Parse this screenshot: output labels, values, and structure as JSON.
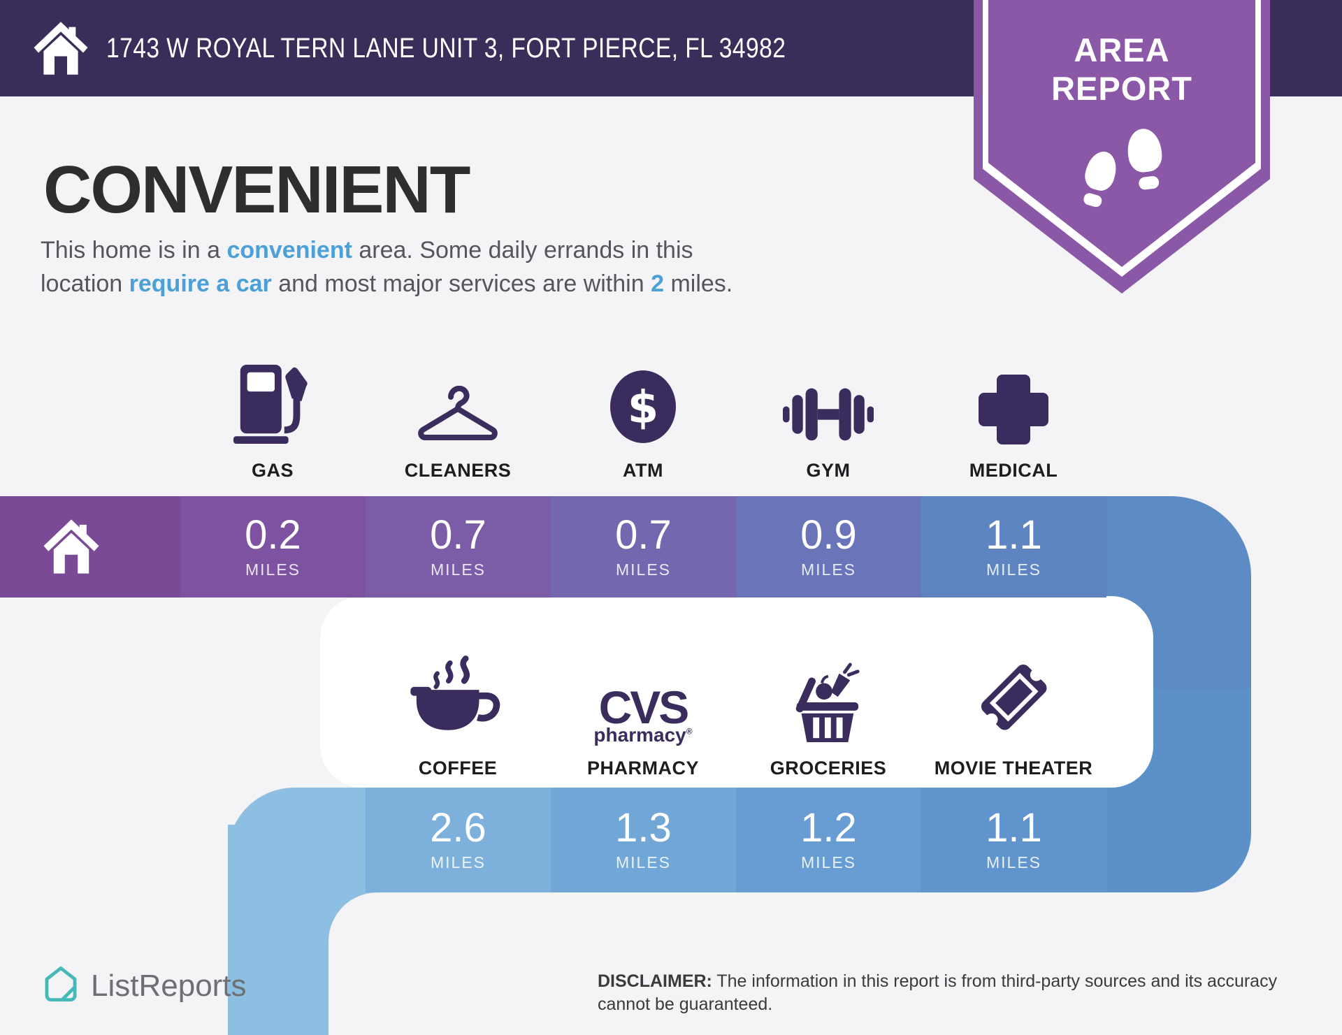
{
  "header": {
    "address": "1743 W ROYAL TERN LANE UNIT 3, FORT PIERCE, FL 34982"
  },
  "badge": {
    "line1": "AREA",
    "line2": "REPORT"
  },
  "intro": {
    "title": "CONVENIENT",
    "parts": [
      {
        "text": "This home is in a ",
        "highlight": false
      },
      {
        "text": "convenient",
        "highlight": true
      },
      {
        "text": " area. Some daily errands in this location ",
        "highlight": false
      },
      {
        "text": "require a car",
        "highlight": true
      },
      {
        "text": " and most major services are within ",
        "highlight": false
      },
      {
        "text": "2",
        "highlight": true
      },
      {
        "text": " miles.",
        "highlight": false
      }
    ]
  },
  "row1": {
    "home_icon": "home",
    "items": [
      {
        "icon": "gas",
        "label": "GAS",
        "distance": "0.2",
        "unit": "MILES"
      },
      {
        "icon": "cleaners",
        "label": "CLEANERS",
        "distance": "0.7",
        "unit": "MILES"
      },
      {
        "icon": "atm",
        "label": "ATM",
        "distance": "0.7",
        "unit": "MILES"
      },
      {
        "icon": "gym",
        "label": "GYM",
        "distance": "0.9",
        "unit": "MILES"
      },
      {
        "icon": "medical",
        "label": "MEDICAL",
        "distance": "1.1",
        "unit": "MILES"
      }
    ]
  },
  "row2": {
    "items": [
      {
        "icon": "coffee",
        "label": "COFFEE",
        "distance": "2.6",
        "unit": "MILES"
      },
      {
        "icon": "cvs",
        "label": "PHARMACY",
        "distance": "1.3",
        "unit": "MILES",
        "logo_line1": "CVS",
        "logo_line2": "pharmacy",
        "logo_reg": "®"
      },
      {
        "icon": "groceries",
        "label": "GROCERIES",
        "distance": "1.2",
        "unit": "MILES"
      },
      {
        "icon": "ticket",
        "label": "MOVIE THEATER",
        "distance": "1.1",
        "unit": "MILES"
      }
    ]
  },
  "footer": {
    "brand": "ListReports",
    "disclaimer_label": "DISCLAIMER:",
    "disclaimer_text": " The information in this report is from third-party sources and its accuracy cannot be guaranteed."
  },
  "colors": {
    "bg": "#f4f3f6",
    "header": "#3b2d59",
    "badge": "#8a58a6",
    "accent": "#4ba0d8",
    "icon": "#3a2d5e",
    "title": "#2e2d2f",
    "body": "#55565a",
    "label": "#1d1d1f",
    "bar1_home": "#7b4a97",
    "bar1_segments": [
      "#7d52a1",
      "#7a5ca7",
      "#7467af",
      "#6a74b8",
      "#5e85c1"
    ],
    "corner_top": "#5d8bc3",
    "corner_bottom": "#5b90c9",
    "bar2_segments": [
      "#7db1dc",
      "#70a7d7",
      "#679dd2",
      "#6094cc"
    ],
    "left_elbow": "#8dbfe3",
    "white_box": "#ffffff",
    "logo_teal": "#46b8b8"
  }
}
